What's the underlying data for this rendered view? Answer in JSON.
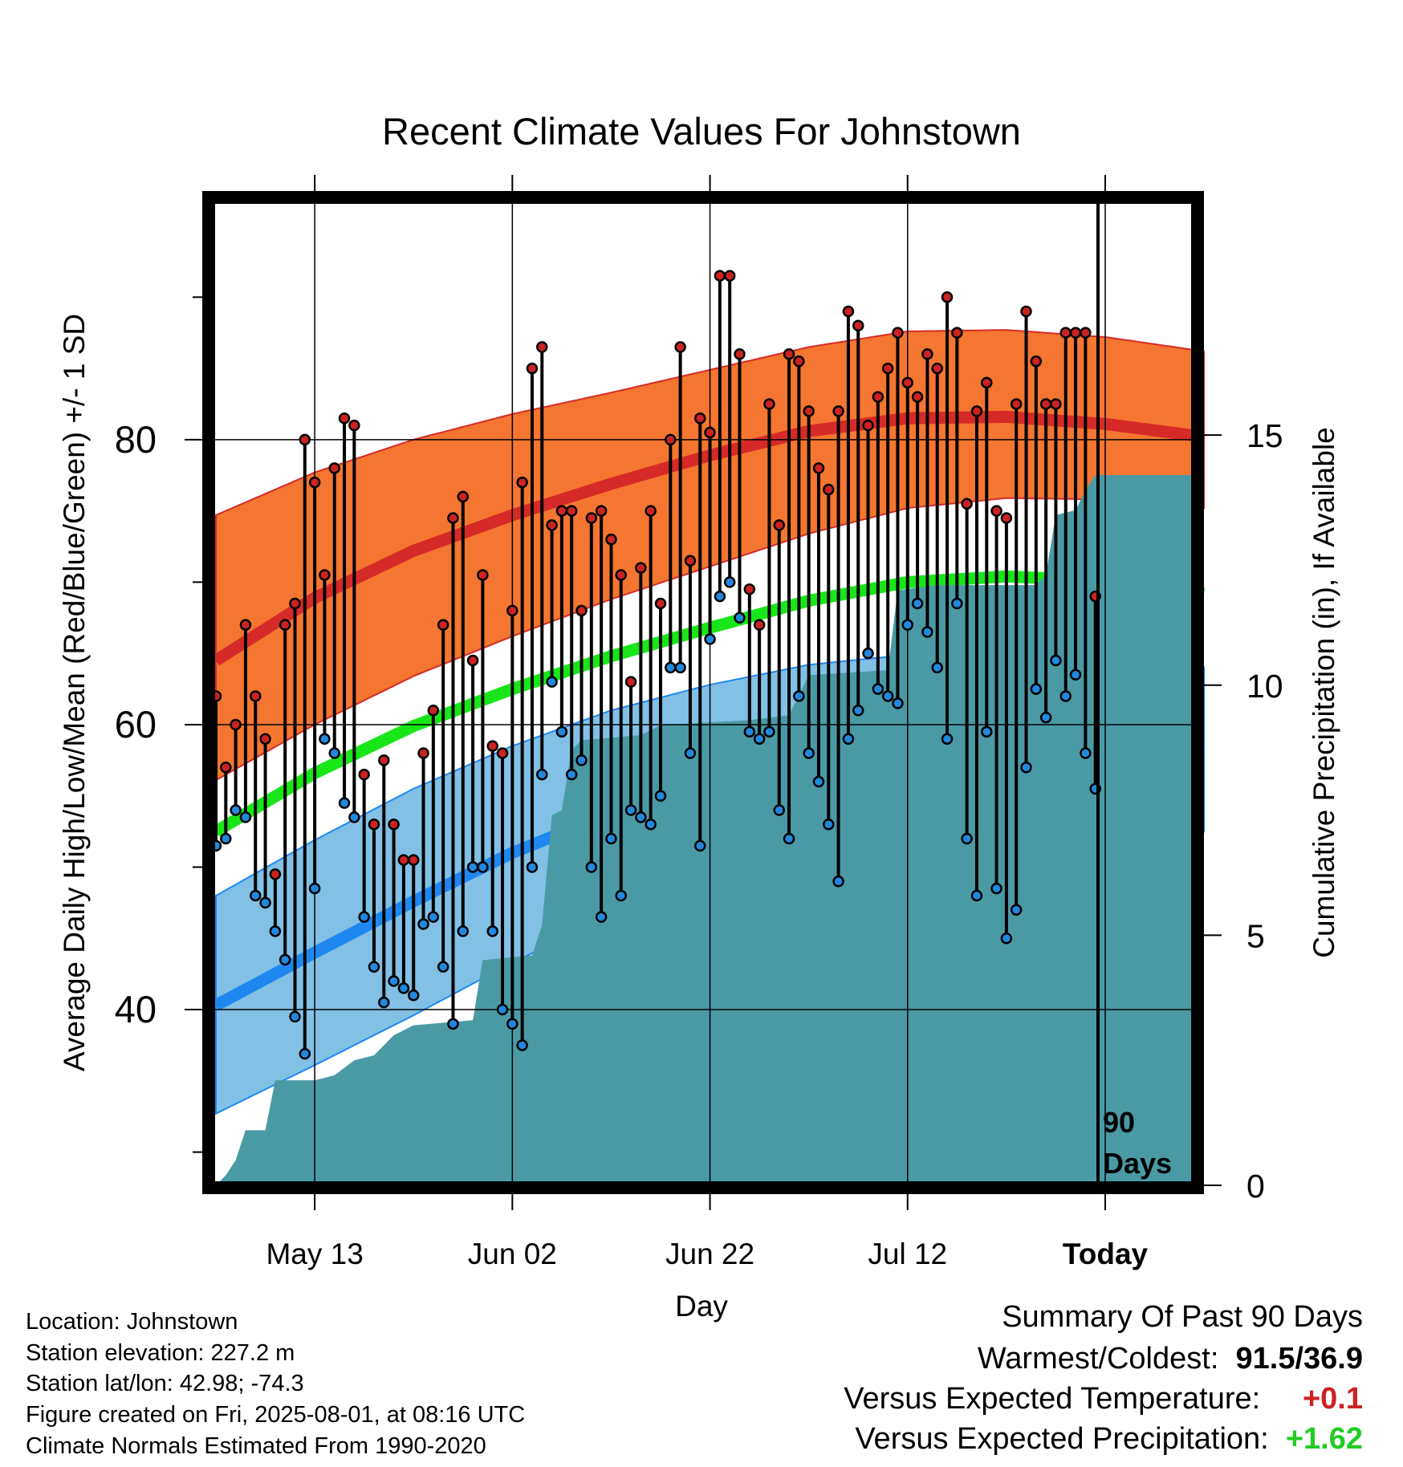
{
  "chart_data": {
    "type": "line",
    "title": "Recent Climate Values For Johnstown",
    "xlabel": "Day",
    "ylabel": "Average Daily High/Low/Mean (Red/Blue/Green) +/- 1 SD",
    "y2label": "Cumulative Precipitation (in), If Available",
    "xlim_days": [
      1,
      91
    ],
    "x_ticks": [
      {
        "day": 11,
        "label": "May 13"
      },
      {
        "day": 31,
        "label": "Jun 02"
      },
      {
        "day": 51,
        "label": "Jun 22"
      },
      {
        "day": 71,
        "label": "Jul 12"
      },
      {
        "day": 91,
        "label": "Today"
      }
    ],
    "ylim": [
      27.5,
      97
    ],
    "y_ticks": [
      40,
      60,
      80
    ],
    "y_minor_ticks": [
      30,
      50,
      70,
      90
    ],
    "y2lim": [
      0,
      19.8
    ],
    "y2_ticks": [
      0,
      5,
      10,
      15
    ],
    "grid": true,
    "today_line_label": "90",
    "today_line_label2": "Days",
    "colors": {
      "high_band": "#f47630",
      "high_mean": "#d62a28",
      "low_band": "#82c0e6",
      "low_mean": "#1e88f0",
      "mean": "#19e619",
      "precip": "#4a9aa6",
      "high_marker": "#cc2222",
      "low_marker": "#2288dd",
      "frame": "#000000"
    },
    "normals_knots": {
      "days": [
        1,
        11,
        21,
        31,
        41,
        51,
        61,
        71,
        81,
        91,
        101
      ],
      "high_mean": [
        64.5,
        68.9,
        72.2,
        74.7,
        76.9,
        78.9,
        80.6,
        81.5,
        81.6,
        81.1,
        80.2
      ],
      "high_upper": [
        74.7,
        77.7,
        80.0,
        81.8,
        83.3,
        84.9,
        86.5,
        87.6,
        87.7,
        87.2,
        86.2
      ],
      "high_lower": [
        56.1,
        60.0,
        63.4,
        66.2,
        68.8,
        71.1,
        73.4,
        75.2,
        75.9,
        75.8,
        75.2
      ],
      "mean": [
        52.5,
        56.6,
        59.9,
        62.5,
        64.8,
        66.8,
        68.7,
        70.0,
        70.4,
        70.1,
        69.2
      ],
      "low_upper": [
        48.0,
        51.9,
        55.5,
        58.5,
        61.0,
        62.8,
        64.2,
        64.9,
        65.0,
        64.8,
        64.0
      ],
      "low_mean": [
        40.3,
        44.0,
        47.6,
        51.0,
        53.8,
        56.1,
        57.9,
        59.0,
        59.2,
        58.9,
        57.8
      ],
      "low_lower": [
        32.7,
        36.1,
        39.6,
        43.3,
        46.6,
        49.6,
        52.0,
        53.4,
        53.6,
        53.4,
        52.5
      ]
    },
    "daily_high": [
      62,
      57,
      60,
      67,
      62,
      59,
      49.5,
      67,
      68.5,
      80,
      77,
      70.5,
      78,
      81.5,
      81,
      56.5,
      53,
      57.5,
      53,
      50.5,
      50.5,
      58,
      61,
      67,
      74.5,
      76,
      64.5,
      70.5,
      58.5,
      58,
      68,
      77,
      85,
      86.5,
      74,
      75,
      75,
      68,
      74.5,
      75,
      73,
      70.5,
      63,
      71,
      75,
      68.5,
      80,
      86.5,
      71.5,
      81.5,
      80.5,
      91.5,
      91.5,
      86,
      69.5,
      67,
      82.5,
      74,
      86,
      85.5,
      82,
      78,
      76.5,
      82,
      89,
      88,
      81,
      83,
      85,
      87.5,
      84,
      83,
      86,
      85,
      90,
      87.5,
      75.5,
      82,
      84,
      75,
      74.5,
      82.5,
      89,
      85.5,
      82.5,
      82.5,
      87.5,
      87.5,
      87.5,
      69
    ],
    "daily_low": [
      51.5,
      52,
      54,
      53.5,
      48,
      47.5,
      45.5,
      43.5,
      39.5,
      36.9,
      48.5,
      59,
      58,
      54.5,
      53.5,
      46.5,
      43,
      40.5,
      42,
      41.5,
      41,
      46,
      46.5,
      43,
      39,
      45.5,
      50,
      50,
      45.5,
      40,
      39,
      37.5,
      50,
      56.5,
      63,
      59.5,
      56.5,
      57.5,
      50,
      46.5,
      52,
      48,
      54,
      53.5,
      53,
      55,
      64,
      64,
      58,
      51.5,
      66,
      69,
      70,
      67.5,
      59.5,
      59,
      59.5,
      54,
      52,
      62,
      58,
      56,
      53,
      49,
      59,
      61,
      65,
      62.5,
      62,
      61.5,
      67,
      68.5,
      66.5,
      64,
      59,
      68.5,
      52,
      48,
      59.5,
      48.5,
      45,
      47,
      57,
      62.5,
      60.5,
      64.5,
      62,
      63.5,
      58,
      55.5
    ],
    "precip_knots": [
      [
        1,
        0
      ],
      [
        2,
        0.2
      ],
      [
        3,
        0.5
      ],
      [
        4,
        1.1
      ],
      [
        6,
        1.1
      ],
      [
        7,
        2.1
      ],
      [
        11,
        2.1
      ],
      [
        13,
        2.2
      ],
      [
        15,
        2.5
      ],
      [
        17,
        2.6
      ],
      [
        19,
        3.0
      ],
      [
        21,
        3.2
      ],
      [
        27,
        3.3
      ],
      [
        28,
        4.5
      ],
      [
        33,
        4.6
      ],
      [
        34,
        5.2
      ],
      [
        35,
        7.4
      ],
      [
        36,
        7.5
      ],
      [
        37,
        8.7
      ],
      [
        38,
        8.9
      ],
      [
        44,
        9.0
      ],
      [
        46,
        9.2
      ],
      [
        55,
        9.3
      ],
      [
        59,
        9.4
      ],
      [
        60,
        9.8
      ],
      [
        61,
        10.2
      ],
      [
        69,
        10.3
      ],
      [
        70,
        11.9
      ],
      [
        74,
        12.0
      ],
      [
        84,
        12.0
      ],
      [
        85,
        12.2
      ],
      [
        86,
        13.4
      ],
      [
        88,
        13.5
      ],
      [
        89,
        13.9
      ],
      [
        90,
        14.2
      ],
      [
        100,
        14.2
      ]
    ]
  },
  "info": {
    "location": "Location: Johnstown",
    "elevation": "Station elevation: 227.2 m",
    "latlon": "Station lat/lon: 42.98; -74.3",
    "created": "Figure created on Fri, 2025-08-01, at 08:16 UTC",
    "normals": "Climate Normals Estimated From 1990-2020"
  },
  "summary": {
    "title": "Summary Of Past 90 Days",
    "warm_cold_label": "Warmest/Coldest:",
    "warm_cold_value": "91.5/36.9",
    "temp_label": "Versus Expected Temperature:",
    "temp_value": "+0.1",
    "temp_color": "#cc2222",
    "precip_label": "Versus Expected Precipitation:",
    "precip_value": "+1.62",
    "precip_color": "#22cc22"
  }
}
